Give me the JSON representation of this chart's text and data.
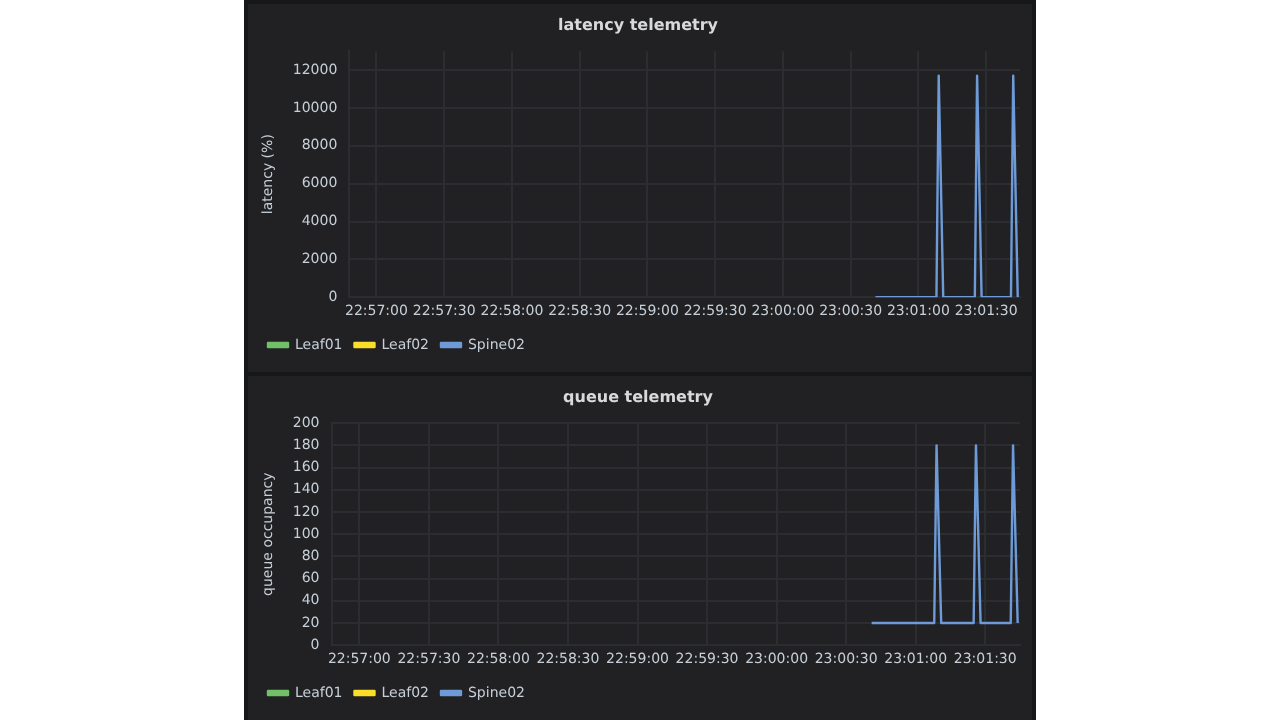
{
  "chart_data": [
    {
      "type": "line",
      "title": "latency telemetry",
      "ylabel": "latency (%)",
      "x": [
        23.011389,
        23.018889,
        23.019167,
        23.019722,
        23.023611,
        23.023889,
        23.024444,
        23.028056,
        23.028333,
        23.028889
      ],
      "series": [
        {
          "name": "Leaf01",
          "color": "#73bf69",
          "values": [
            null,
            null,
            null,
            null,
            null,
            null,
            null,
            null,
            null,
            null
          ]
        },
        {
          "name": "Leaf02",
          "color": "#fade2a",
          "values": [
            null,
            null,
            null,
            null,
            null,
            null,
            null,
            null,
            null,
            null
          ]
        },
        {
          "name": "Spine02",
          "color": "#6e9bd8",
          "values": [
            0,
            0,
            11700,
            0,
            0,
            11700,
            0,
            0,
            11700,
            0
          ]
        }
      ],
      "xlim": [
        22.946667,
        23.029167
      ],
      "xticks": [
        {
          "value": 22.95,
          "label": "22:57:00"
        },
        {
          "value": 22.958333,
          "label": "22:57:30"
        },
        {
          "value": 22.966667,
          "label": "22:58:00"
        },
        {
          "value": 22.975,
          "label": "22:58:30"
        },
        {
          "value": 22.983333,
          "label": "22:59:00"
        },
        {
          "value": 22.991667,
          "label": "22:59:30"
        },
        {
          "value": 23,
          "label": "23:00:00"
        },
        {
          "value": 23.008333,
          "label": "23:00:30"
        },
        {
          "value": 23.016667,
          "label": "23:01:00"
        },
        {
          "value": 23.025,
          "label": "23:01:30"
        }
      ],
      "ylim": [
        0,
        13000
      ],
      "yticks": [
        0,
        2000,
        4000,
        6000,
        8000,
        10000,
        12000
      ],
      "grid": true,
      "legend": "bottom left",
      "marker": "none",
      "line_style": "solid"
    },
    {
      "type": "line",
      "title": "queue telemetry",
      "ylabel": "queue occupancy",
      "x": [
        23.011389,
        23.018889,
        23.019167,
        23.019722,
        23.023611,
        23.023889,
        23.024444,
        23.028056,
        23.028333,
        23.028889
      ],
      "series": [
        {
          "name": "Leaf01",
          "color": "#73bf69",
          "values": [
            null,
            null,
            null,
            null,
            null,
            null,
            null,
            null,
            null,
            null
          ]
        },
        {
          "name": "Leaf02",
          "color": "#fade2a",
          "values": [
            null,
            null,
            null,
            null,
            null,
            null,
            null,
            null,
            null,
            null
          ]
        },
        {
          "name": "Spine02",
          "color": "#6e9bd8",
          "values": [
            20,
            20,
            180,
            20,
            20,
            180,
            20,
            20,
            180,
            20
          ]
        }
      ],
      "xlim": [
        22.946667,
        23.029167
      ],
      "xticks": [
        {
          "value": 22.95,
          "label": "22:57:00"
        },
        {
          "value": 22.958333,
          "label": "22:57:30"
        },
        {
          "value": 22.966667,
          "label": "22:58:00"
        },
        {
          "value": 22.975,
          "label": "22:58:30"
        },
        {
          "value": 22.983333,
          "label": "22:59:00"
        },
        {
          "value": 22.991667,
          "label": "22:59:30"
        },
        {
          "value": 23,
          "label": "23:00:00"
        },
        {
          "value": 23.008333,
          "label": "23:00:30"
        },
        {
          "value": 23.016667,
          "label": "23:01:00"
        },
        {
          "value": 23.025,
          "label": "23:01:30"
        }
      ],
      "ylim": [
        0,
        200
      ],
      "yticks": [
        0,
        20,
        40,
        60,
        80,
        100,
        120,
        140,
        160,
        180,
        200
      ],
      "grid": true,
      "legend": "bottom left",
      "marker": "none",
      "line_style": "solid"
    }
  ]
}
